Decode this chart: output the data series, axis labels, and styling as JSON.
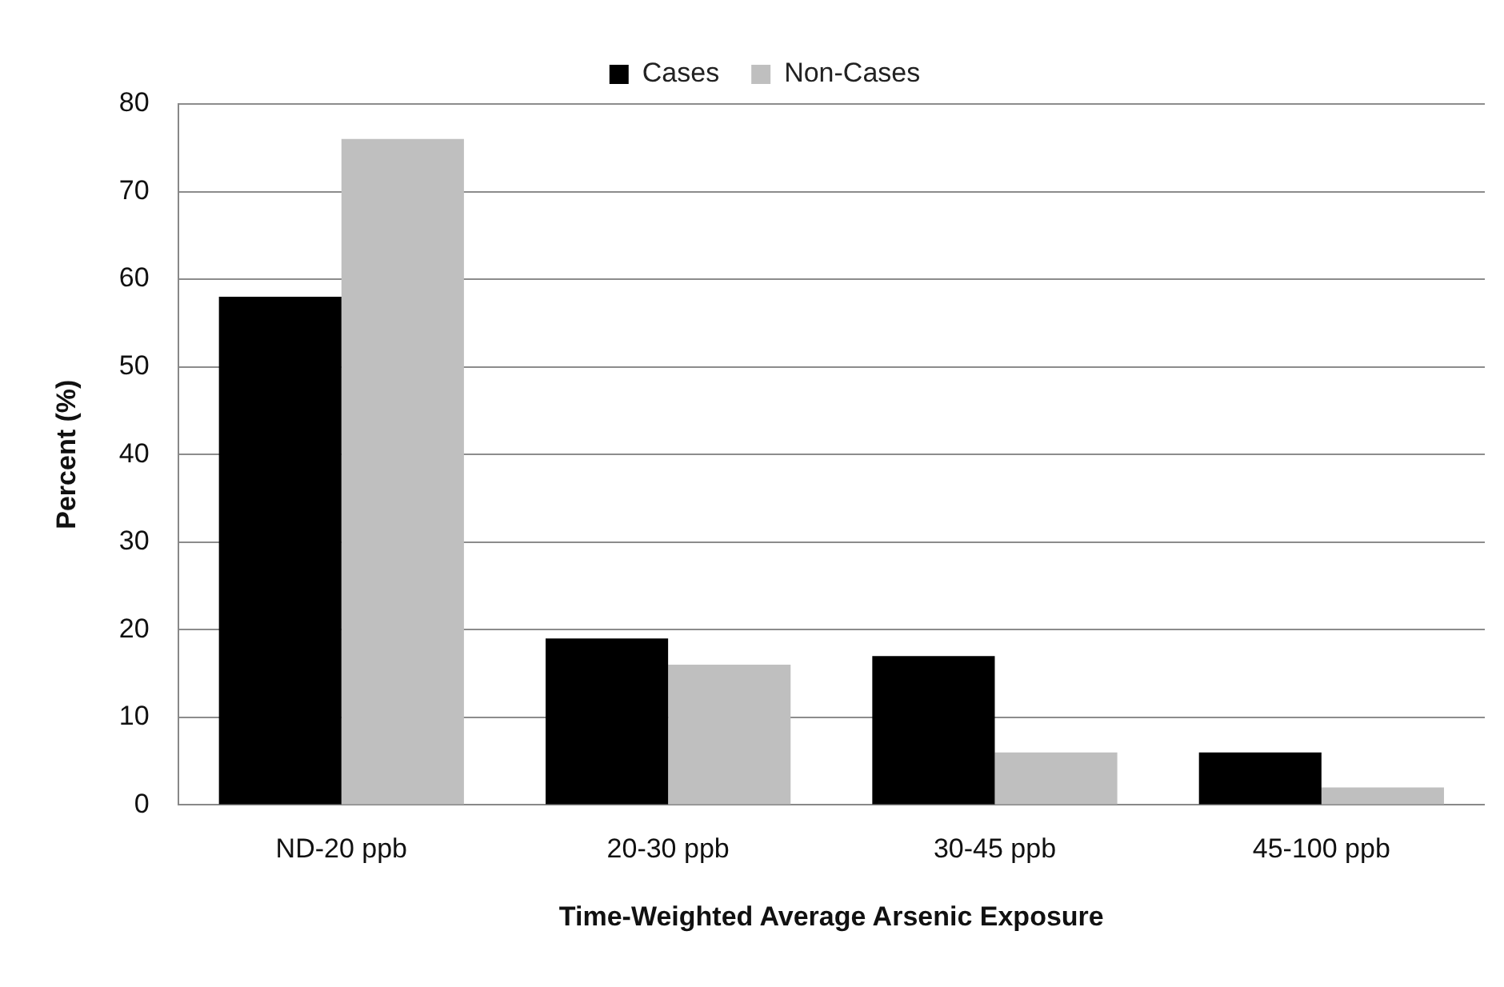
{
  "chart_data": {
    "type": "bar",
    "xlabel": "Time-Weighted Average Arsenic Exposure",
    "ylabel": "Percent (%)",
    "categories": [
      "ND-20 ppb",
      "20-30 ppb",
      "30-45 ppb",
      "45-100 ppb"
    ],
    "series": [
      {
        "name": "Cases",
        "color": "#000000",
        "values": [
          58,
          19,
          17,
          6
        ]
      },
      {
        "name": "Non-Cases",
        "color": "#bfbfbf",
        "values": [
          76,
          16,
          6,
          2
        ]
      }
    ],
    "ylim": [
      0,
      80
    ],
    "yticks": [
      0,
      10,
      20,
      30,
      40,
      50,
      60,
      70,
      80
    ],
    "grid": "y",
    "legend": "top"
  }
}
